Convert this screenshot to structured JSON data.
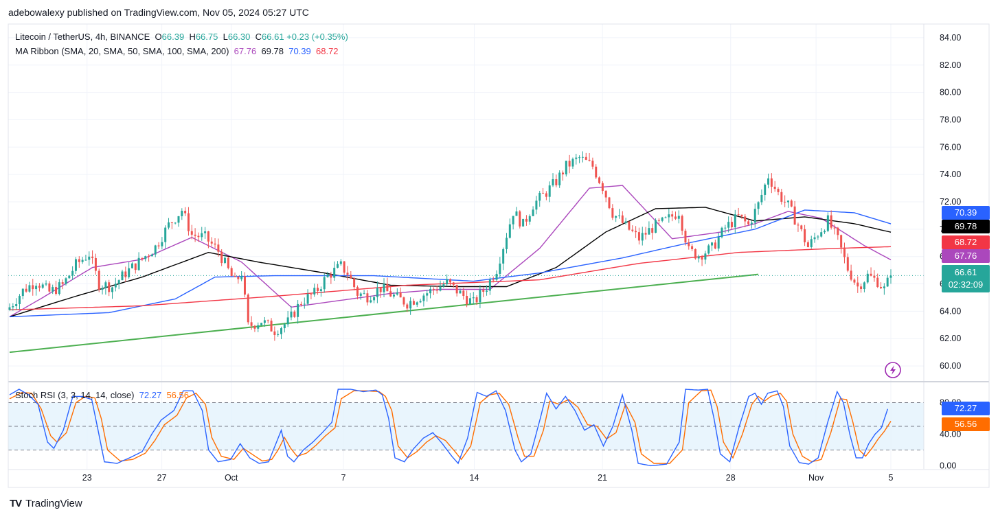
{
  "header": {
    "publisher": "adebowalexy published on TradingView.com, Nov 05, 2024 05:27 UTC"
  },
  "symbol_legend": {
    "name": "Litecoin / TetherUS, 4h, BINANCE",
    "o_label": "O",
    "o": "66.39",
    "h_label": "H",
    "h": "66.75",
    "l_label": "L",
    "l": "66.30",
    "c_label": "C",
    "c": "66.61",
    "change": "+0.23 (+0.35%)"
  },
  "ma_legend": {
    "name": "MA Ribbon (SMA, 20, SMA, 50, SMA, 100, SMA, 200)",
    "v20": "67.76",
    "v50": "69.78",
    "v100": "70.39",
    "v200": "68.72"
  },
  "rsi_legend": {
    "name": "Stoch RSI (3, 3, 14, 14, close)",
    "k": "72.27",
    "d": "56.56"
  },
  "price_tags": {
    "sma100": "70.39",
    "sma50": "69.78",
    "sma200": "68.72",
    "sma20": "67.76",
    "last": "66.61",
    "countdown": "02:32:09",
    "rsi_k": "72.27",
    "rsi_d": "56.56"
  },
  "footer": {
    "brand": "TradingView"
  },
  "colors": {
    "up": "#26a69a",
    "down": "#ef5350",
    "sma20": "#ab47bc",
    "sma50": "#000000",
    "sma100": "#2962ff",
    "sma200": "#f23645",
    "trendline": "#4caf50",
    "rsi_k": "#2962ff",
    "rsi_d": "#ff6d00"
  },
  "chart_data": {
    "type": "candlestick",
    "title": "Litecoin / TetherUS, 4h, BINANCE",
    "ylim": [
      59,
      85
    ],
    "y_ticks": [
      "84.00",
      "82.00",
      "80.00",
      "78.00",
      "76.00",
      "74.00",
      "72.00",
      "70.00",
      "68.00",
      "66.00",
      "64.00",
      "62.00",
      "60.00"
    ],
    "x_ticks": [
      "23",
      "27",
      "Oct",
      "7",
      "14",
      "21",
      "28",
      "Nov",
      "5"
    ],
    "last_price": 66.61,
    "price_path": [
      [
        0,
        64.3
      ],
      [
        4,
        65.5
      ],
      [
        8,
        66.2
      ],
      [
        12,
        65.4
      ],
      [
        16,
        65.9
      ],
      [
        20,
        67.4
      ],
      [
        24,
        68.2
      ],
      [
        27,
        66.0
      ],
      [
        31,
        65.8
      ],
      [
        35,
        66.8
      ],
      [
        39,
        67.6
      ],
      [
        44,
        68.7
      ],
      [
        48,
        70.3
      ],
      [
        52,
        71.4
      ],
      [
        55,
        69.6
      ],
      [
        59,
        69.4
      ],
      [
        63,
        68.4
      ],
      [
        66,
        67.0
      ],
      [
        68,
        66.1
      ],
      [
        70,
        66.8
      ],
      [
        72,
        62.9
      ],
      [
        76,
        63.3
      ],
      [
        80,
        62.6
      ],
      [
        84,
        63.2
      ],
      [
        88,
        64.7
      ],
      [
        92,
        65.3
      ],
      [
        96,
        66.6
      ],
      [
        100,
        67.3
      ],
      [
        102,
        66.8
      ],
      [
        105,
        65.3
      ],
      [
        108,
        65.1
      ],
      [
        112,
        65.7
      ],
      [
        116,
        65.1
      ],
      [
        120,
        64.6
      ],
      [
        124,
        65.1
      ],
      [
        128,
        65.6
      ],
      [
        132,
        66.1
      ],
      [
        136,
        65.3
      ],
      [
        140,
        64.6
      ],
      [
        144,
        65.8
      ],
      [
        147,
        67.1
      ],
      [
        150,
        69.6
      ],
      [
        152,
        71.3
      ],
      [
        155,
        70.3
      ],
      [
        158,
        71.8
      ],
      [
        162,
        72.7
      ],
      [
        165,
        73.5
      ],
      [
        168,
        74.6
      ],
      [
        172,
        75.2
      ],
      [
        176,
        74.6
      ],
      [
        179,
        73.1
      ],
      [
        182,
        71.2
      ],
      [
        186,
        70.2
      ],
      [
        190,
        69.3
      ],
      [
        194,
        70.1
      ],
      [
        198,
        70.6
      ],
      [
        202,
        71.3
      ],
      [
        205,
        68.4
      ],
      [
        208,
        68.1
      ],
      [
        212,
        68.6
      ],
      [
        216,
        70.1
      ],
      [
        220,
        70.9
      ],
      [
        223,
        70.3
      ],
      [
        226,
        71.8
      ],
      [
        229,
        73.9
      ],
      [
        232,
        72.6
      ],
      [
        235,
        71.7
      ],
      [
        238,
        70.3
      ],
      [
        241,
        68.7
      ],
      [
        244,
        69.7
      ],
      [
        247,
        70.6
      ],
      [
        250,
        69.2
      ],
      [
        253,
        67.1
      ],
      [
        256,
        65.8
      ],
      [
        259,
        66.6
      ],
      [
        262,
        66.2
      ],
      [
        264,
        65.6
      ],
      [
        266,
        66.61
      ]
    ],
    "series": [
      {
        "name": "SMA 20",
        "last": 67.76,
        "values": [
          [
            0,
            63.6
          ],
          [
            10,
            65.0
          ],
          [
            25,
            67.2
          ],
          [
            40,
            67.8
          ],
          [
            55,
            69.4
          ],
          [
            70,
            67.6
          ],
          [
            85,
            64.3
          ],
          [
            100,
            64.8
          ],
          [
            115,
            65.3
          ],
          [
            130,
            65.6
          ],
          [
            145,
            65.6
          ],
          [
            160,
            68.6
          ],
          [
            175,
            73.0
          ],
          [
            185,
            73.2
          ],
          [
            200,
            69.3
          ],
          [
            215,
            69.8
          ],
          [
            225,
            70.4
          ],
          [
            235,
            71.3
          ],
          [
            245,
            70.8
          ],
          [
            258,
            68.8
          ],
          [
            266,
            67.76
          ]
        ]
      },
      {
        "name": "SMA 50",
        "last": 69.78,
        "values": [
          [
            0,
            63.6
          ],
          [
            20,
            65.1
          ],
          [
            40,
            66.5
          ],
          [
            60,
            68.3
          ],
          [
            75,
            67.6
          ],
          [
            95,
            66.8
          ],
          [
            115,
            65.9
          ],
          [
            135,
            65.8
          ],
          [
            150,
            65.8
          ],
          [
            165,
            67.2
          ],
          [
            180,
            69.8
          ],
          [
            195,
            71.5
          ],
          [
            210,
            71.6
          ],
          [
            225,
            70.6
          ],
          [
            240,
            70.9
          ],
          [
            255,
            70.4
          ],
          [
            266,
            69.78
          ]
        ]
      },
      {
        "name": "SMA 100",
        "last": 70.39,
        "values": [
          [
            0,
            63.6
          ],
          [
            30,
            63.9
          ],
          [
            50,
            64.9
          ],
          [
            62,
            66.5
          ],
          [
            80,
            66.6
          ],
          [
            110,
            66.6
          ],
          [
            140,
            66.2
          ],
          [
            160,
            66.8
          ],
          [
            185,
            67.9
          ],
          [
            205,
            69.0
          ],
          [
            225,
            70.0
          ],
          [
            240,
            71.4
          ],
          [
            255,
            71.2
          ],
          [
            266,
            70.39
          ]
        ]
      },
      {
        "name": "SMA 200",
        "last": 68.72,
        "values": [
          [
            0,
            64.1
          ],
          [
            40,
            64.4
          ],
          [
            80,
            65.1
          ],
          [
            120,
            65.9
          ],
          [
            160,
            66.3
          ],
          [
            190,
            67.5
          ],
          [
            220,
            68.3
          ],
          [
            250,
            68.6
          ],
          [
            266,
            68.72
          ]
        ]
      }
    ],
    "trendline": {
      "start": [
        0,
        61.0
      ],
      "end": [
        226,
        66.7
      ]
    },
    "stoch_rsi": {
      "ylim": [
        -4,
        104
      ],
      "y_ticks": [
        "80.00",
        "40.00",
        "0.00"
      ],
      "bands": [
        20,
        50,
        80
      ],
      "k_last": 72.27,
      "d_last": 56.56,
      "k": [
        [
          0,
          90
        ],
        [
          3,
          97
        ],
        [
          6,
          90
        ],
        [
          9,
          78
        ],
        [
          12,
          30
        ],
        [
          14,
          22
        ],
        [
          17,
          45
        ],
        [
          20,
          88
        ],
        [
          23,
          88
        ],
        [
          26,
          84
        ],
        [
          28,
          45
        ],
        [
          30,
          5
        ],
        [
          34,
          3
        ],
        [
          38,
          10
        ],
        [
          42,
          18
        ],
        [
          45,
          40
        ],
        [
          48,
          58
        ],
        [
          52,
          70
        ],
        [
          55,
          95
        ],
        [
          58,
          95
        ],
        [
          61,
          70
        ],
        [
          63,
          20
        ],
        [
          66,
          5
        ],
        [
          70,
          8
        ],
        [
          73,
          28
        ],
        [
          76,
          10
        ],
        [
          79,
          3
        ],
        [
          82,
          5
        ],
        [
          84,
          25
        ],
        [
          86,
          45
        ],
        [
          88,
          12
        ],
        [
          90,
          5
        ],
        [
          93,
          20
        ],
        [
          96,
          30
        ],
        [
          99,
          42
        ],
        [
          102,
          55
        ],
        [
          104,
          97
        ],
        [
          108,
          97
        ],
        [
          112,
          94
        ],
        [
          116,
          96
        ],
        [
          118,
          90
        ],
        [
          120,
          60
        ],
        [
          122,
          10
        ],
        [
          125,
          5
        ],
        [
          128,
          22
        ],
        [
          131,
          35
        ],
        [
          134,
          42
        ],
        [
          137,
          28
        ],
        [
          140,
          12
        ],
        [
          142,
          3
        ],
        [
          145,
          35
        ],
        [
          148,
          93
        ],
        [
          151,
          88
        ],
        [
          154,
          95
        ],
        [
          157,
          70
        ],
        [
          160,
          20
        ],
        [
          162,
          5
        ],
        [
          165,
          15
        ],
        [
          168,
          60
        ],
        [
          170,
          92
        ],
        [
          173,
          72
        ],
        [
          176,
          88
        ],
        [
          179,
          70
        ],
        [
          182,
          45
        ],
        [
          185,
          52
        ],
        [
          188,
          25
        ],
        [
          191,
          50
        ],
        [
          194,
          90
        ],
        [
          197,
          45
        ],
        [
          199,
          3
        ],
        [
          203,
          0
        ],
        [
          208,
          2
        ],
        [
          212,
          30
        ],
        [
          214,
          97
        ],
        [
          218,
          96
        ],
        [
          221,
          97
        ],
        [
          223,
          60
        ],
        [
          225,
          15
        ],
        [
          228,
          5
        ],
        [
          231,
          50
        ],
        [
          234,
          88
        ],
        [
          236,
          92
        ],
        [
          238,
          78
        ],
        [
          240,
          92
        ],
        [
          243,
          95
        ],
        [
          245,
          75
        ],
        [
          247,
          25
        ],
        [
          250,
          4
        ],
        [
          253,
          2
        ],
        [
          256,
          10
        ],
        [
          259,
          55
        ],
        [
          262,
          94
        ],
        [
          264,
          80
        ],
        [
          266,
          40
        ],
        [
          268,
          10
        ],
        [
          270,
          10
        ],
        [
          272,
          28
        ],
        [
          274,
          40
        ],
        [
          276,
          48
        ],
        [
          278,
          72
        ]
      ],
      "d": [
        [
          0,
          85
        ],
        [
          4,
          93
        ],
        [
          7,
          92
        ],
        [
          10,
          72
        ],
        [
          13,
          38
        ],
        [
          15,
          30
        ],
        [
          18,
          42
        ],
        [
          21,
          80
        ],
        [
          24,
          88
        ],
        [
          27,
          86
        ],
        [
          29,
          60
        ],
        [
          31,
          20
        ],
        [
          35,
          6
        ],
        [
          39,
          8
        ],
        [
          43,
          16
        ],
        [
          46,
          32
        ],
        [
          49,
          52
        ],
        [
          53,
          64
        ],
        [
          56,
          86
        ],
        [
          59,
          92
        ],
        [
          62,
          78
        ],
        [
          64,
          36
        ],
        [
          67,
          12
        ],
        [
          71,
          8
        ],
        [
          74,
          22
        ],
        [
          77,
          14
        ],
        [
          80,
          6
        ],
        [
          83,
          8
        ],
        [
          85,
          20
        ],
        [
          87,
          36
        ],
        [
          89,
          22
        ],
        [
          91,
          12
        ],
        [
          94,
          16
        ],
        [
          97,
          26
        ],
        [
          100,
          38
        ],
        [
          103,
          48
        ],
        [
          105,
          85
        ],
        [
          109,
          95
        ],
        [
          113,
          95
        ],
        [
          117,
          94
        ],
        [
          119,
          88
        ],
        [
          121,
          70
        ],
        [
          123,
          25
        ],
        [
          126,
          10
        ],
        [
          129,
          18
        ],
        [
          132,
          30
        ],
        [
          135,
          38
        ],
        [
          138,
          32
        ],
        [
          141,
          18
        ],
        [
          143,
          8
        ],
        [
          146,
          25
        ],
        [
          149,
          80
        ],
        [
          152,
          90
        ],
        [
          155,
          92
        ],
        [
          158,
          78
        ],
        [
          161,
          35
        ],
        [
          163,
          12
        ],
        [
          166,
          12
        ],
        [
          169,
          45
        ],
        [
          171,
          82
        ],
        [
          174,
          78
        ],
        [
          177,
          84
        ],
        [
          180,
          74
        ],
        [
          183,
          52
        ],
        [
          186,
          50
        ],
        [
          189,
          34
        ],
        [
          192,
          42
        ],
        [
          195,
          78
        ],
        [
          198,
          55
        ],
        [
          200,
          15
        ],
        [
          204,
          3
        ],
        [
          209,
          3
        ],
        [
          213,
          20
        ],
        [
          215,
          80
        ],
        [
          219,
          95
        ],
        [
          222,
          96
        ],
        [
          224,
          75
        ],
        [
          226,
          30
        ],
        [
          229,
          10
        ],
        [
          232,
          40
        ],
        [
          235,
          78
        ],
        [
          237,
          88
        ],
        [
          239,
          82
        ],
        [
          241,
          88
        ],
        [
          244,
          92
        ],
        [
          246,
          82
        ],
        [
          248,
          40
        ],
        [
          251,
          12
        ],
        [
          254,
          5
        ],
        [
          257,
          8
        ],
        [
          260,
          42
        ],
        [
          263,
          85
        ],
        [
          265,
          84
        ],
        [
          267,
          55
        ],
        [
          269,
          20
        ],
        [
          271,
          12
        ],
        [
          273,
          22
        ],
        [
          275,
          34
        ],
        [
          277,
          44
        ],
        [
          279,
          56.56
        ]
      ]
    }
  }
}
